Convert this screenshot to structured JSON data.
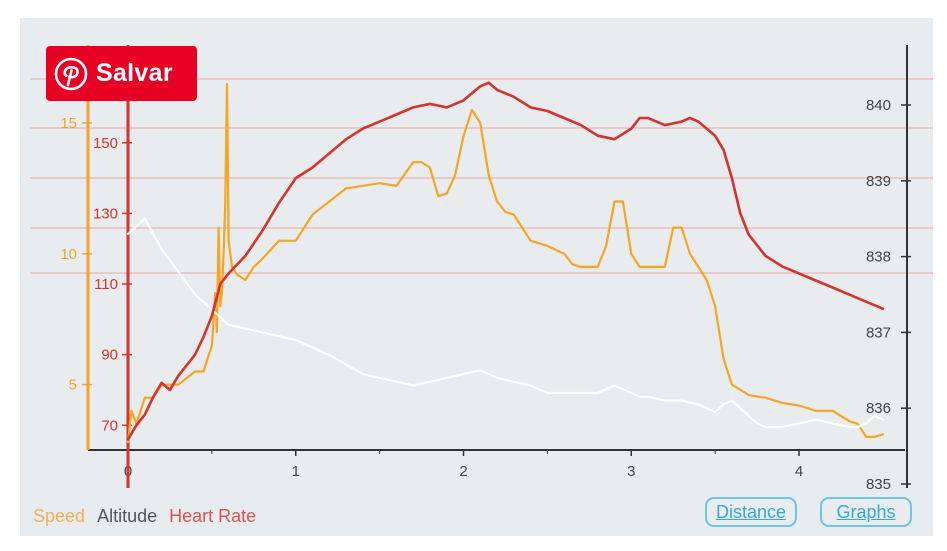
{
  "pin_button": {
    "label": "Salvar",
    "color": "#e60023"
  },
  "buttons": {
    "distance": "Distance",
    "graphs": "Graphs"
  },
  "chart_data": {
    "type": "line",
    "xlabel": "",
    "title": "",
    "x_ticks": [
      0,
      1,
      2,
      3,
      4
    ],
    "xlim": [
      -0.25,
      4.6
    ],
    "axes": {
      "speed": {
        "ticks": [
          5,
          10,
          15
        ],
        "lim": [
          2.5,
          17.7
        ],
        "color": "#f2a32c"
      },
      "heart_rate": {
        "ticks": [
          70,
          90,
          110,
          130,
          150
        ],
        "lim": [
          63,
          174
        ],
        "color": "#d8322c"
      },
      "altitude": {
        "ticks": [
          835,
          836,
          837,
          838,
          839,
          840
        ],
        "lim": [
          835.5,
          840.9
        ],
        "color": "#444444"
      }
    },
    "grid": "horizontal lines at heart rate values",
    "legend": "bottom-left",
    "series": [
      {
        "name": "Speed",
        "axis": "speed",
        "color": "#f5a623",
        "x": [
          0,
          0.02,
          0.05,
          0.1,
          0.15,
          0.2,
          0.3,
          0.4,
          0.45,
          0.5,
          0.51,
          0.52,
          0.53,
          0.54,
          0.55,
          0.56,
          0.57,
          0.58,
          0.59,
          0.6,
          0.62,
          0.65,
          0.7,
          0.75,
          0.8,
          0.9,
          1.0,
          1.1,
          1.2,
          1.3,
          1.4,
          1.5,
          1.6,
          1.7,
          1.75,
          1.8,
          1.85,
          1.9,
          1.95,
          2.0,
          2.05,
          2.1,
          2.15,
          2.2,
          2.25,
          2.3,
          2.35,
          2.4,
          2.5,
          2.6,
          2.65,
          2.7,
          2.8,
          2.85,
          2.9,
          2.95,
          3.0,
          3.05,
          3.1,
          3.2,
          3.25,
          3.3,
          3.35,
          3.4,
          3.45,
          3.5,
          3.55,
          3.6,
          3.65,
          3.7,
          3.8,
          3.9,
          4.0,
          4.1,
          4.2,
          4.3,
          4.35,
          4.4,
          4.45,
          4.5
        ],
        "y": [
          2.8,
          4.0,
          3.5,
          4.5,
          4.5,
          5.0,
          5.0,
          5.5,
          5.5,
          6.5,
          7.5,
          8.5,
          7.0,
          11.0,
          8.0,
          8.5,
          10.0,
          12.0,
          16.5,
          10.5,
          9.5,
          9.2,
          9.0,
          9.5,
          9.8,
          10.5,
          10.5,
          11.5,
          12.0,
          12.5,
          12.6,
          12.7,
          12.6,
          13.5,
          13.5,
          13.3,
          12.2,
          12.3,
          13.0,
          14.5,
          15.5,
          15.0,
          13.0,
          12.0,
          11.6,
          11.5,
          11.0,
          10.5,
          10.3,
          10.0,
          9.6,
          9.5,
          9.5,
          10.3,
          12.0,
          12.0,
          10.0,
          9.5,
          9.5,
          9.5,
          11.0,
          11.0,
          10.0,
          9.5,
          9.0,
          8.0,
          6.0,
          5.0,
          4.8,
          4.6,
          4.5,
          4.3,
          4.2,
          4.0,
          4.0,
          3.6,
          3.5,
          3.0,
          3.0,
          3.1
        ]
      },
      {
        "name": "Altitude",
        "axis": "altitude",
        "color": "#ffffff",
        "x": [
          0,
          0.05,
          0.1,
          0.15,
          0.2,
          0.3,
          0.4,
          0.5,
          0.6,
          0.8,
          1.0,
          1.2,
          1.4,
          1.5,
          1.6,
          1.7,
          1.8,
          1.9,
          2.0,
          2.1,
          2.2,
          2.3,
          2.4,
          2.5,
          2.6,
          2.7,
          2.8,
          2.85,
          2.9,
          3.0,
          3.05,
          3.1,
          3.2,
          3.3,
          3.4,
          3.5,
          3.55,
          3.6,
          3.7,
          3.75,
          3.8,
          3.9,
          4.0,
          4.1,
          4.2,
          4.3,
          4.35,
          4.4,
          4.45,
          4.5
        ],
        "y": [
          838.3,
          838.4,
          838.5,
          838.3,
          838.1,
          837.8,
          837.5,
          837.3,
          837.1,
          837.0,
          836.9,
          836.7,
          836.45,
          836.4,
          836.35,
          836.3,
          836.35,
          836.4,
          836.45,
          836.5,
          836.4,
          836.35,
          836.3,
          836.2,
          836.2,
          836.2,
          836.2,
          836.25,
          836.3,
          836.2,
          836.15,
          836.15,
          836.1,
          836.1,
          836.05,
          835.95,
          836.05,
          836.1,
          835.9,
          835.8,
          835.75,
          835.75,
          835.8,
          835.85,
          835.8,
          835.75,
          835.75,
          835.8,
          835.9,
          835.85
        ]
      },
      {
        "name": "Heart Rate",
        "axis": "heart_rate",
        "color": "#d8322c",
        "x": [
          0,
          0.05,
          0.1,
          0.15,
          0.2,
          0.25,
          0.3,
          0.35,
          0.4,
          0.45,
          0.5,
          0.55,
          0.6,
          0.7,
          0.8,
          0.9,
          1.0,
          1.1,
          1.2,
          1.3,
          1.4,
          1.5,
          1.6,
          1.7,
          1.8,
          1.9,
          2.0,
          2.05,
          2.1,
          2.15,
          2.2,
          2.3,
          2.4,
          2.5,
          2.6,
          2.7,
          2.8,
          2.9,
          3.0,
          3.05,
          3.1,
          3.2,
          3.3,
          3.35,
          3.4,
          3.5,
          3.55,
          3.6,
          3.65,
          3.7,
          3.8,
          3.9,
          4.0,
          4.1,
          4.2,
          4.3,
          4.4,
          4.5
        ],
        "y": [
          66,
          70,
          73,
          78,
          82,
          80,
          84,
          87,
          90,
          95,
          101,
          110,
          113,
          118,
          125,
          133,
          140,
          143,
          147,
          151,
          154,
          156,
          158,
          160,
          161,
          160,
          162,
          164,
          166,
          167,
          165,
          163,
          160,
          159,
          157,
          155,
          152,
          151,
          154,
          157,
          157,
          155,
          156,
          157,
          156,
          152,
          148,
          140,
          130,
          124,
          118,
          115,
          113,
          111,
          109,
          107,
          105,
          103
        ]
      }
    ]
  }
}
